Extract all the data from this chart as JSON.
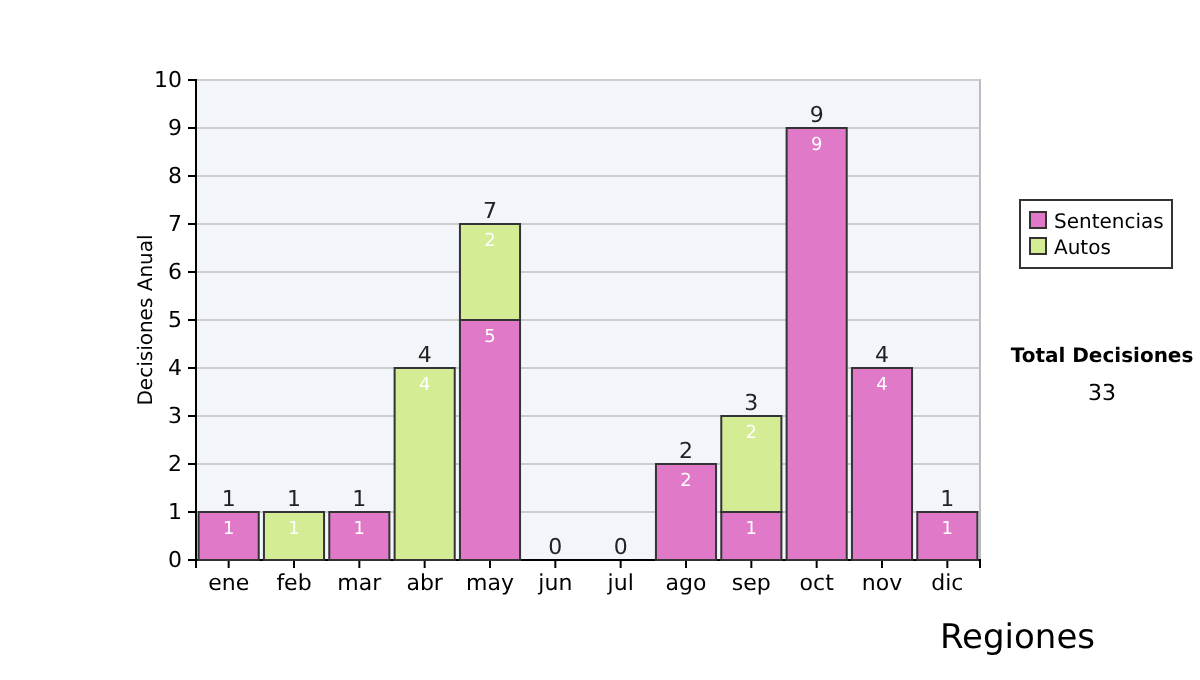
{
  "chart_data": {
    "type": "bar",
    "stacked": true,
    "ylabel": "Decisiones Anual",
    "categories": [
      "ene",
      "feb",
      "mar",
      "abr",
      "may",
      "jun",
      "jul",
      "ago",
      "sep",
      "oct",
      "nov",
      "dic"
    ],
    "series": [
      {
        "name": "Sentencias",
        "color": "#e07ac8",
        "values": [
          1,
          0,
          1,
          0,
          5,
          0,
          0,
          2,
          1,
          9,
          4,
          1
        ],
        "value_labels": [
          "1",
          null,
          "1",
          null,
          "5",
          null,
          null,
          "2",
          "1",
          "9",
          "4",
          "1"
        ]
      },
      {
        "name": "Autos",
        "color": "#d4ec94",
        "values": [
          0,
          1,
          0,
          4,
          2,
          0,
          0,
          0,
          2,
          0,
          0,
          0
        ],
        "value_labels": [
          null,
          "1",
          null,
          "4",
          "2",
          null,
          null,
          null,
          "2",
          null,
          null,
          null
        ]
      }
    ],
    "totals": [
      "1",
      "1",
      "1",
      "4",
      "7",
      "0",
      "0",
      "2",
      "3",
      "9",
      "4",
      "1"
    ],
    "ylim": [
      0,
      10
    ],
    "yticks": [
      0,
      1,
      2,
      3,
      4,
      5,
      6,
      7,
      8,
      9,
      10
    ],
    "grid": "y",
    "legend": "right",
    "annotations": [
      "Total Decisiones",
      "33",
      "Regiones"
    ]
  }
}
